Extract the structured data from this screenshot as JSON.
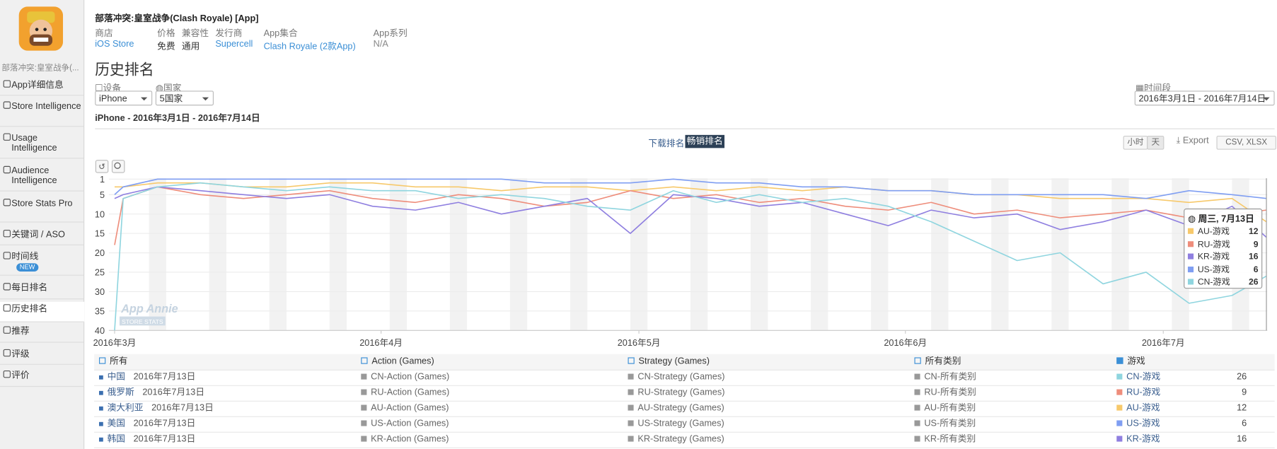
{
  "header": {
    "app_name_short": "部落冲突:皇室战争(...",
    "title": "部落冲突:皇室战争(Clash Royale)",
    "badge": "[App]",
    "fields": [
      {
        "label": "商店",
        "value": "iOS Store"
      },
      {
        "label": "价格",
        "value": "免费"
      },
      {
        "label": "兼容性",
        "value": "通用"
      },
      {
        "label": "发行商",
        "value": "Supercell"
      },
      {
        "label": "App集合",
        "value": "Clash Royale (2款App)"
      },
      {
        "label": "App系列",
        "value": "N/A"
      }
    ]
  },
  "sidebar": {
    "items": [
      "App详细信息",
      "Store Intelligence",
      "Usage Intelligence",
      "Audience Intelligence",
      "Store Stats Pro",
      "关键词 / ASO",
      "时间线",
      "每日排名",
      "历史排名",
      "推荐",
      "评级",
      "评价"
    ],
    "badge": "NEW"
  },
  "page": {
    "heading": "历史排名",
    "device_label": "设备",
    "device": "iPhone",
    "country_label": "国家",
    "country": "5国家",
    "period_label": "时间段",
    "period": "2016年3月1日 - 2016年7月14日",
    "subtitle": "iPhone - 2016年3月1日 - 2016年7月14日",
    "tabs": [
      "下载排名",
      "畅销排名"
    ],
    "granularity": [
      "小时",
      "天"
    ],
    "export": "Export",
    "formats": "CSV, XLSX"
  },
  "chart_data": {
    "type": "line",
    "x": [
      "2016-03-01",
      "2016-03-02",
      "2016-03-06",
      "2016-03-11",
      "2016-03-16",
      "2016-03-21",
      "2016-03-26",
      "2016-03-31",
      "2016-04-05",
      "2016-04-10",
      "2016-04-15",
      "2016-04-20",
      "2016-04-25",
      "2016-04-30",
      "2016-05-05",
      "2016-05-10",
      "2016-05-15",
      "2016-05-20",
      "2016-05-25",
      "2016-05-30",
      "2016-06-04",
      "2016-06-09",
      "2016-06-14",
      "2016-06-19",
      "2016-06-24",
      "2016-06-29",
      "2016-07-04",
      "2016-07-09",
      "2016-07-13"
    ],
    "series": [
      {
        "name": "AU-游戏",
        "color": "#f7c96b",
        "values": [
          3,
          3,
          2,
          2,
          3,
          3,
          2,
          2,
          3,
          3,
          4,
          3,
          3,
          4,
          3,
          4,
          3,
          4,
          3,
          4,
          4,
          5,
          5,
          6,
          6,
          6,
          7,
          6,
          12
        ]
      },
      {
        "name": "RU-游戏",
        "color": "#ee8d7b",
        "values": [
          18,
          6,
          3,
          5,
          6,
          5,
          4,
          6,
          7,
          5,
          6,
          8,
          7,
          4,
          6,
          5,
          7,
          6,
          8,
          9,
          7,
          10,
          9,
          11,
          10,
          9,
          11,
          10,
          9
        ]
      },
      {
        "name": "KR-游戏",
        "color": "#8f7fe0",
        "values": [
          6,
          5,
          3,
          4,
          5,
          6,
          5,
          8,
          9,
          7,
          10,
          8,
          6,
          15,
          5,
          6,
          8,
          7,
          10,
          13,
          9,
          11,
          10,
          14,
          12,
          9,
          13,
          8,
          16
        ]
      },
      {
        "name": "US-游戏",
        "color": "#7f9ef2",
        "values": [
          5,
          3,
          1,
          1,
          1,
          1,
          1,
          1,
          1,
          1,
          1,
          2,
          2,
          2,
          1,
          2,
          2,
          3,
          3,
          4,
          4,
          5,
          5,
          5,
          5,
          6,
          4,
          5,
          6
        ]
      },
      {
        "name": "CN-游戏",
        "color": "#8fd5df",
        "values": [
          40,
          6,
          3,
          2,
          3,
          4,
          3,
          4,
          4,
          6,
          5,
          6,
          8,
          9,
          4,
          7,
          5,
          7,
          6,
          8,
          12,
          17,
          22,
          20,
          28,
          25,
          33,
          31,
          26
        ]
      }
    ],
    "xlim": [
      "2016-03-01",
      "2016-07-13"
    ],
    "xticks": [
      {
        "value": "2016-03-01",
        "label": "2016年3月"
      },
      {
        "value": "2016-04-01",
        "label": "2016年4月"
      },
      {
        "value": "2016-05-01",
        "label": "2016年5月"
      },
      {
        "value": "2016-06-01",
        "label": "2016年6月"
      },
      {
        "value": "2016-07-01",
        "label": "2016年7月"
      }
    ],
    "ylim": [
      1,
      40
    ],
    "y_reversed": true,
    "yticks": [
      1,
      5,
      10,
      15,
      20,
      25,
      30,
      35,
      40
    ],
    "grid": true,
    "weekend_shading": true,
    "watermark": [
      "App Annie",
      "STORE STATS"
    ],
    "tooltip_title": "周三, 7月13日"
  },
  "table": {
    "headers": [
      "所有",
      "Action (Games)",
      "Strategy (Games)",
      "所有类别",
      "游戏"
    ],
    "rows": [
      {
        "country": "中国",
        "date": "2016年7月13日",
        "action": "CN-Action (Games)",
        "strategy": "CN-Strategy (Games)",
        "all": "CN-所有类别",
        "games": "CN-游戏",
        "value": 26,
        "color": "#8fd5df"
      },
      {
        "country": "俄罗斯",
        "date": "2016年7月13日",
        "action": "RU-Action (Games)",
        "strategy": "RU-Strategy (Games)",
        "all": "RU-所有类别",
        "games": "RU-游戏",
        "value": 9,
        "color": "#ee8d7b"
      },
      {
        "country": "澳大利亚",
        "date": "2016年7月13日",
        "action": "AU-Action (Games)",
        "strategy": "AU-Strategy (Games)",
        "all": "AU-所有类别",
        "games": "AU-游戏",
        "value": 12,
        "color": "#f7c96b"
      },
      {
        "country": "美国",
        "date": "2016年7月13日",
        "action": "US-Action (Games)",
        "strategy": "US-Strategy (Games)",
        "all": "US-所有类别",
        "games": "US-游戏",
        "value": 6,
        "color": "#7f9ef2"
      },
      {
        "country": "韩国",
        "date": "2016年7月13日",
        "action": "KR-Action (Games)",
        "strategy": "KR-Strategy (Games)",
        "all": "KR-所有类别",
        "games": "KR-游戏",
        "value": 16,
        "color": "#8f7fe0"
      }
    ]
  }
}
